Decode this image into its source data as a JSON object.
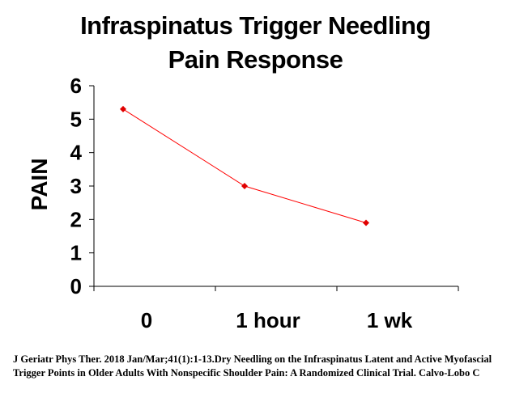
{
  "chart_data": {
    "type": "line",
    "title_line1": "Infraspinatus Trigger Needling",
    "title_line2": "Pain Response",
    "ylabel": "PAIN",
    "xlabel": "",
    "categories": [
      "0",
      "1 hour",
      "1 wk"
    ],
    "series": [
      {
        "values": [
          5.3,
          3.0,
          1.9
        ]
      }
    ],
    "ylim": [
      0,
      6
    ],
    "yticks": [
      "0",
      "1",
      "2",
      "3",
      "4",
      "5",
      "6"
    ],
    "grid": false,
    "legend": "none",
    "line_color": "#ff0000",
    "marker_color": "#e00000"
  },
  "citation": {
    "line1": "J Geriatr Phys Ther. 2018 Jan/Mar;41(1):1-13.Dry Needling on the Infraspinatus Latent and Active Myofascial",
    "line2": "Trigger Points in  Older Adults With Nonspecific Shoulder Pain: A Randomized Clinical Trial. Calvo-Lobo C"
  }
}
